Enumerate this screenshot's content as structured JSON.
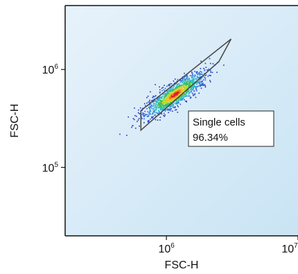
{
  "chart_data": {
    "type": "scatter",
    "title": "",
    "xlabel": "FSC-H",
    "ylabel": "FSC-H",
    "xscale": "log",
    "yscale": "log",
    "xlim": [
      170000,
      10000000
    ],
    "ylim": [
      20000,
      4500000
    ],
    "x_ticks": [
      {
        "value": 1000000,
        "base": "10",
        "exp": "6"
      },
      {
        "value": 10000000,
        "base": "10",
        "exp": "7"
      }
    ],
    "y_ticks": [
      {
        "value": 100000,
        "base": "10",
        "exp": "5"
      },
      {
        "value": 1000000,
        "base": "10",
        "exp": "6"
      }
    ],
    "gate": {
      "name": "Single cells",
      "percent": "96.34%",
      "vertices": [
        [
          640000,
          240000
        ],
        [
          2500000,
          1200000
        ],
        [
          3100000,
          2050000
        ],
        [
          640000,
          380000
        ]
      ]
    },
    "density": {
      "center": [
        1150000,
        560000
      ],
      "low_color": "#2a3fc9",
      "high_color": "#d8231f"
    },
    "background_gradient": [
      "#e7f2fb",
      "#c9e4f4"
    ]
  }
}
